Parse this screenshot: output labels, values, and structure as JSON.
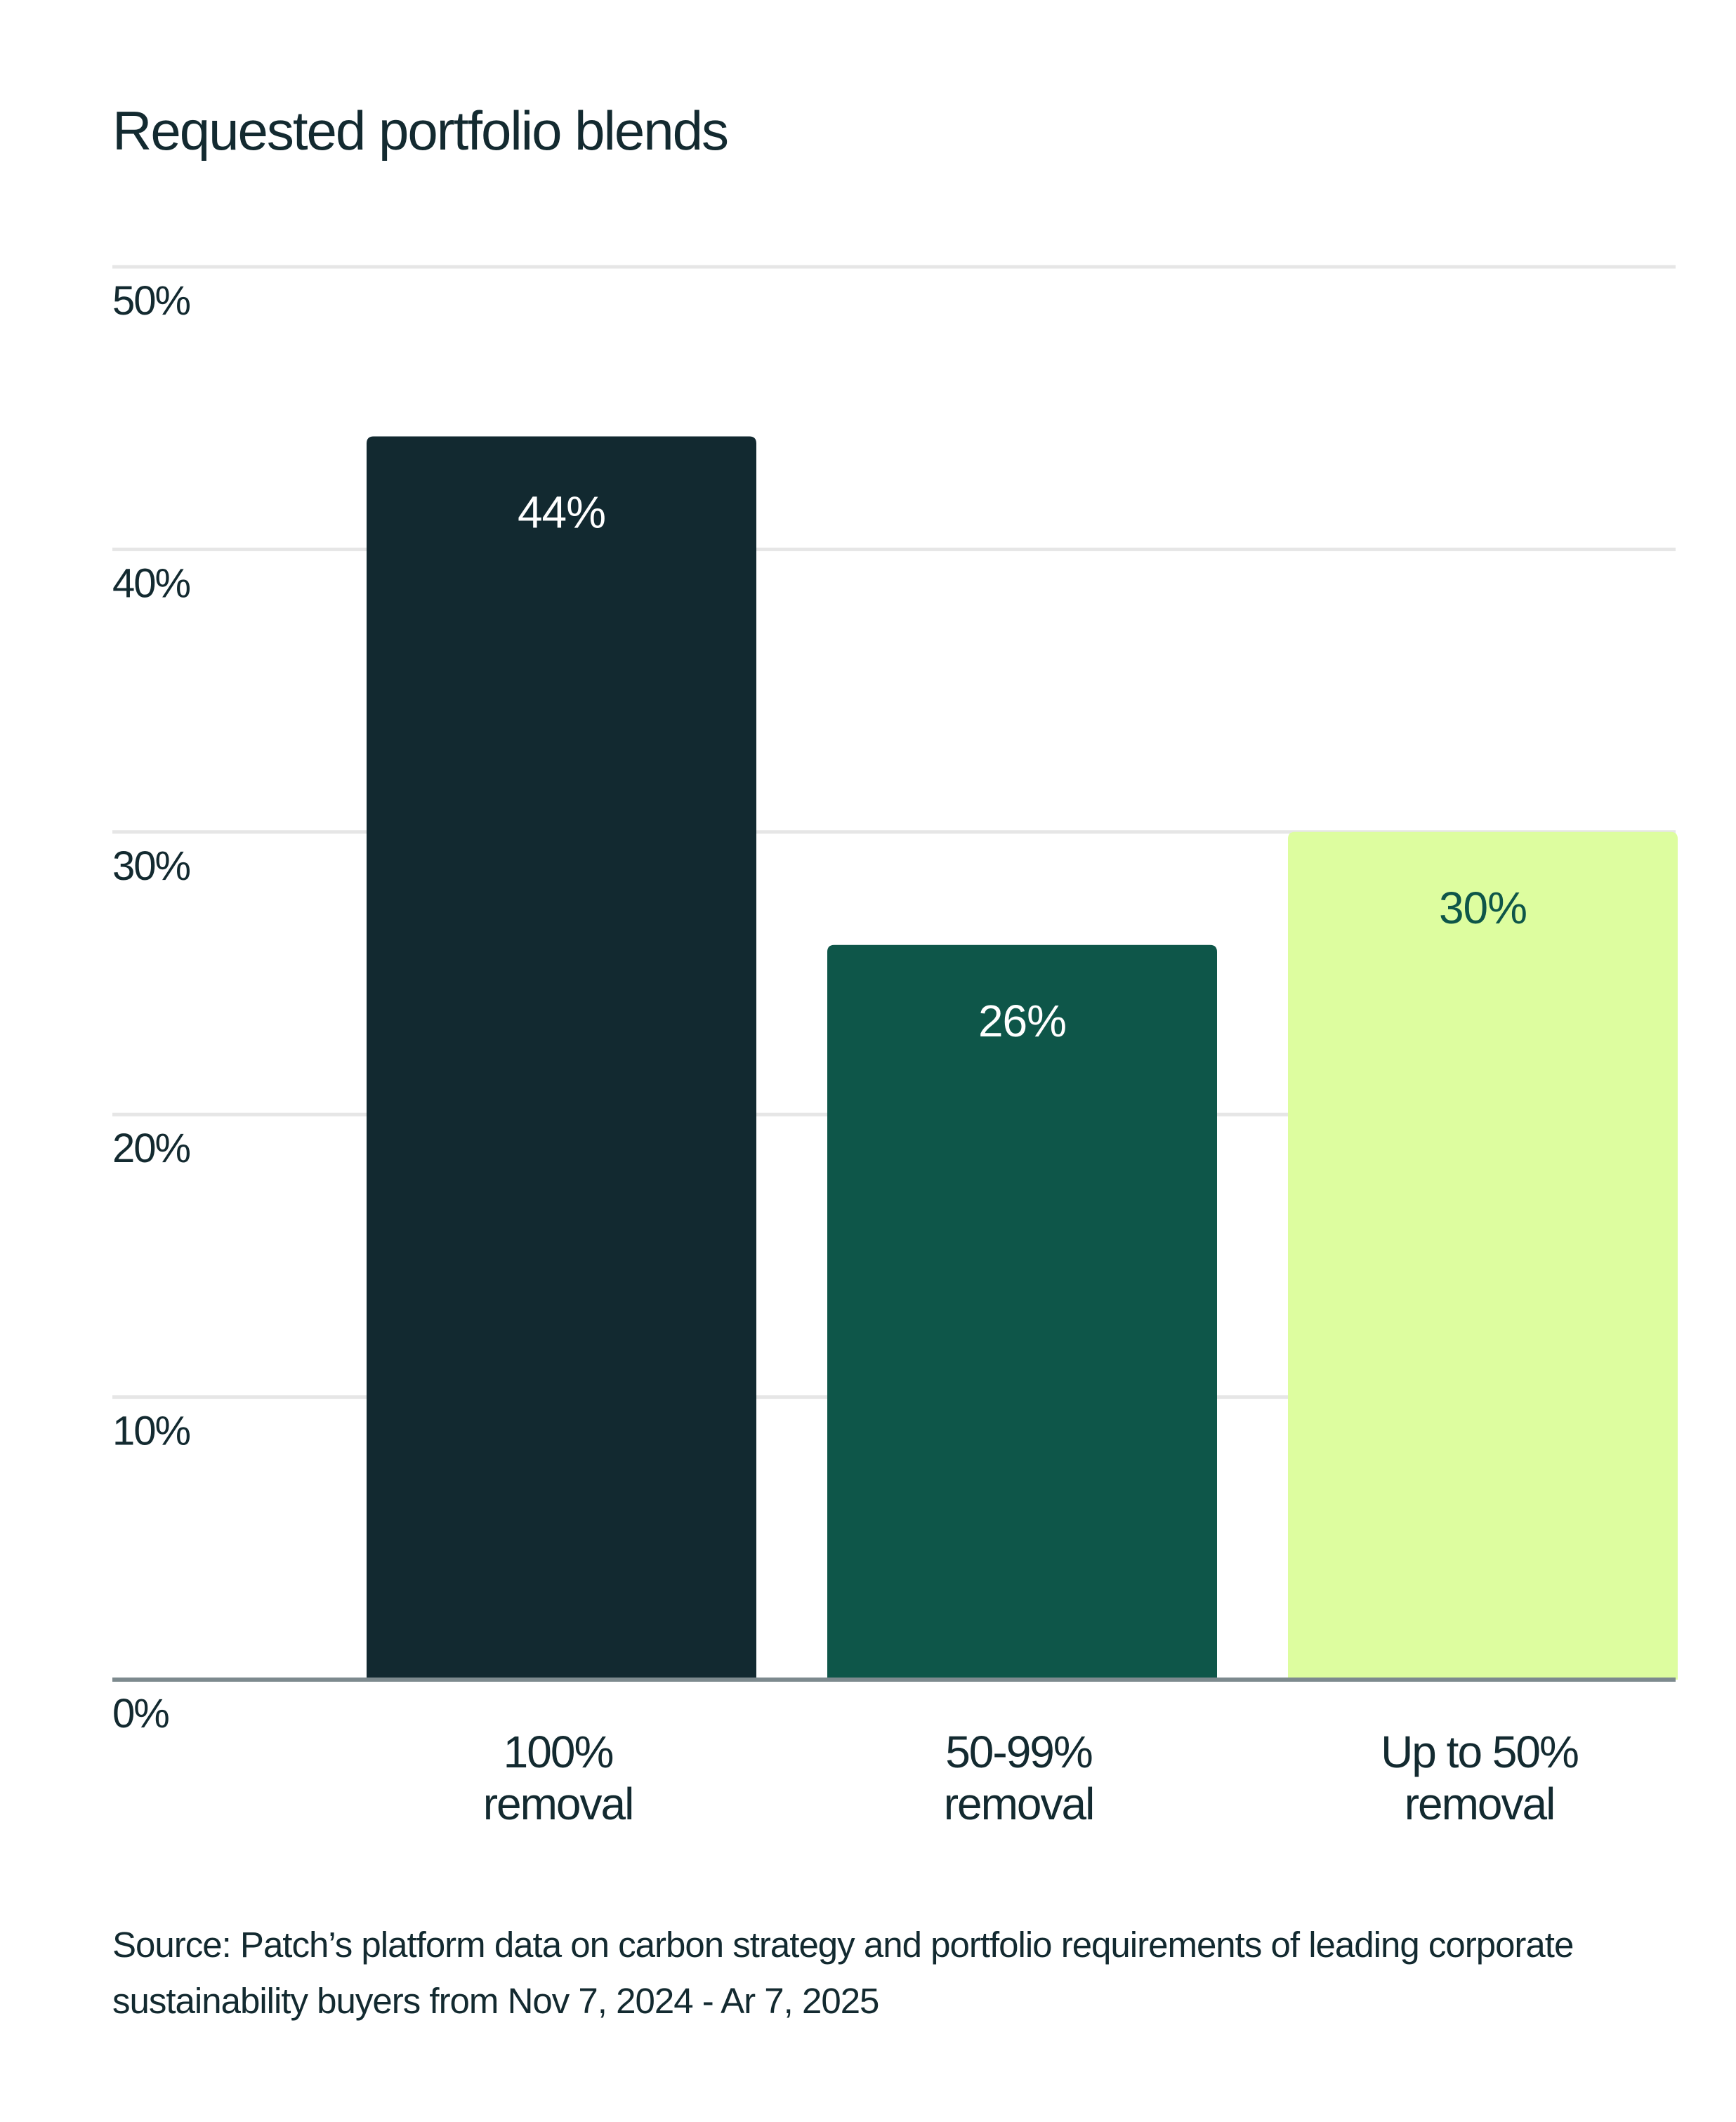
{
  "chart_data": {
    "type": "bar",
    "title": "Requested portfolio blends",
    "categories": [
      [
        "100%",
        "removal"
      ],
      [
        "50-99%",
        "removal"
      ],
      [
        "Up to 50%",
        "removal"
      ]
    ],
    "values": [
      44,
      26,
      30
    ],
    "value_labels": [
      "44%",
      "26%",
      "30%"
    ],
    "bar_colors": [
      "#122930",
      "#0e5649",
      "#ddfd9f"
    ],
    "value_label_colors": [
      "#ffffff",
      "#ffffff",
      "#0e5649"
    ],
    "ylim": [
      0,
      50
    ],
    "yticks": [
      {
        "value": 50,
        "label": "50%"
      },
      {
        "value": 40,
        "label": "40%"
      },
      {
        "value": 30,
        "label": "30%"
      },
      {
        "value": 20,
        "label": "20%"
      },
      {
        "value": 10,
        "label": "10%"
      },
      {
        "value": 0,
        "label": "0%"
      }
    ],
    "grid": true,
    "xlabel": "",
    "ylabel": ""
  },
  "source_text": "Source: Patch’s platform data on carbon strategy and portfolio requirements of leading corporate sustainability buyers from Nov 7, 2024 - Ar 7, 2025",
  "colors": {
    "text": "#132a30",
    "grid": "#e6e6e6",
    "baseline": "#7d8a8e"
  }
}
